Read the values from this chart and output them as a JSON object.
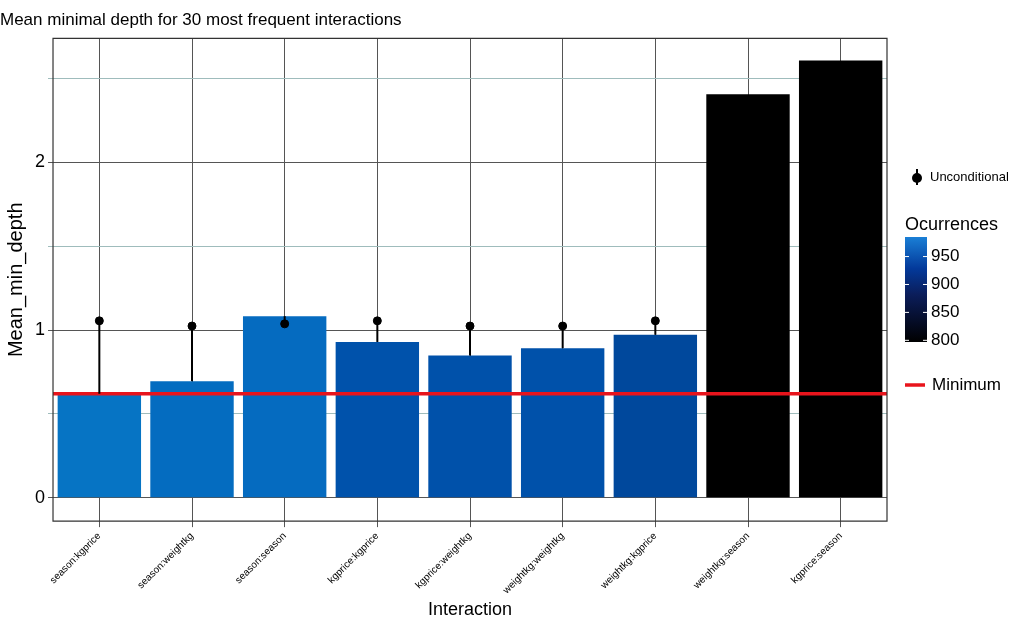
{
  "chart_data": {
    "type": "bar",
    "title": "Mean minimal depth for 30 most frequent interactions",
    "xlabel": "Interaction",
    "ylabel": "Mean_min_depth",
    "clabel": "Ocurrences",
    "categories": [
      "season:kgprice",
      "season:weightkg",
      "season:season",
      "kgprice:kgprice",
      "kgprice:weightkg",
      "weightkg:weightkg",
      "weightkg:kgprice",
      "weightkg:season",
      "kgprice:season"
    ],
    "series": [
      {
        "values": [
          0.62,
          0.695,
          1.083,
          0.929,
          0.848,
          0.892,
          0.972,
          2.407,
          2.608
        ],
        "colors": [
          "#0674c4",
          "#046cc0",
          "#056bc0",
          "#0052ab",
          "#0051aa",
          "#0051aa",
          "#00489c",
          "#000000",
          "#000000"
        ]
      },
      {
        "type": "scatter",
        "name": "Unconditional",
        "color": "#000000",
        "values": [
          1.055,
          1.024,
          1.037,
          1.055,
          1.024,
          1.024,
          1.055,
          null,
          null
        ],
        "errors": [
          [
            0.62,
            1.055
          ],
          [
            0.695,
            1.024
          ],
          [
            1.037,
            1.083
          ],
          [
            0.929,
            1.055
          ],
          [
            0.848,
            1.024
          ],
          [
            0.892,
            1.024
          ],
          [
            0.972,
            1.055
          ],
          null,
          null
        ]
      }
    ],
    "marker": "circle",
    "ylim": [
      -0.14,
      2.74
    ],
    "yticks": [
      0,
      {
        "value": 0.5,
        "label": null
      },
      1,
      {
        "value": 1.5,
        "label": null
      },
      2,
      {
        "value": 2.5,
        "label": null
      }
    ],
    "clim": [
      797,
      985
    ],
    "cticks": [
      800,
      850,
      900,
      950
    ],
    "ref_lines": [
      {
        "axis": "y",
        "value": 0.62,
        "label": "Minimum",
        "color": "#e8141c"
      }
    ],
    "grid": true,
    "legend": "right"
  }
}
